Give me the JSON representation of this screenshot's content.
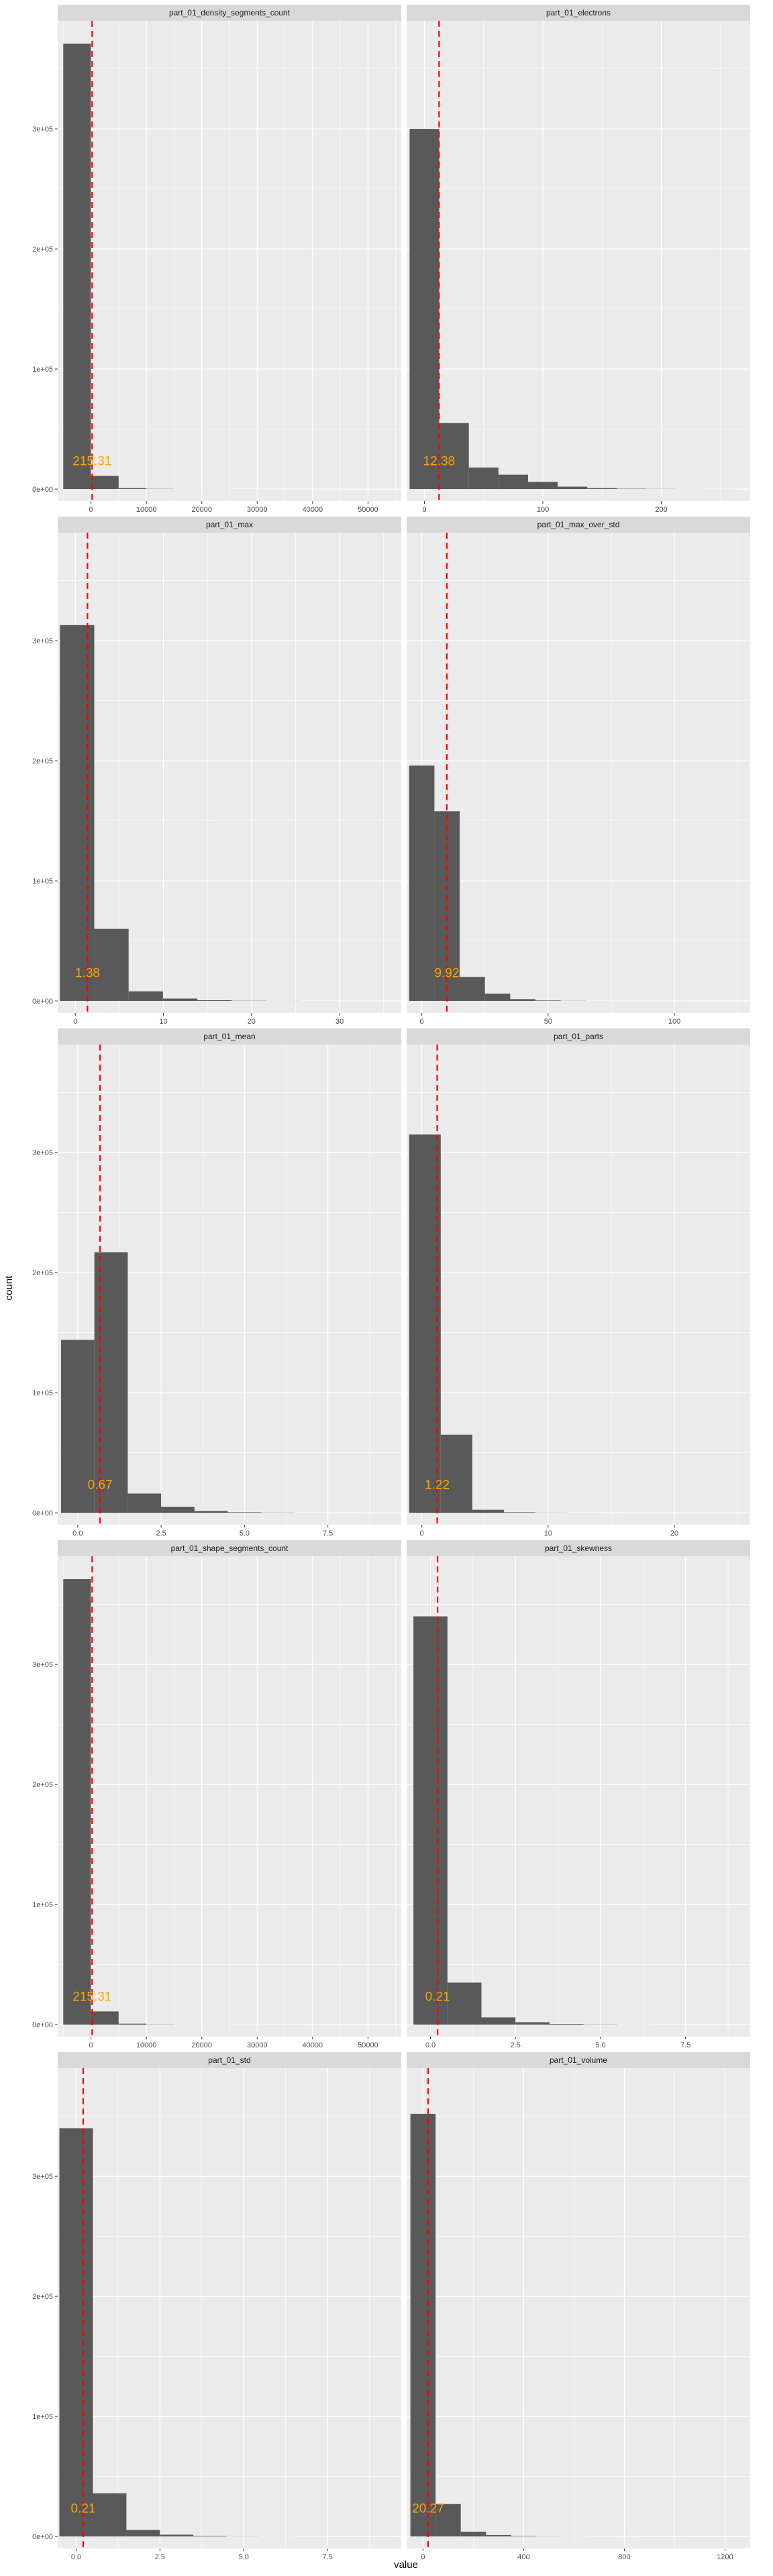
{
  "colors": {
    "panel_bg": "#ebebeb",
    "strip_bg": "#d9d9d9",
    "grid": "#ffffff",
    "bar": "#595959",
    "mean_line": "#ff0000",
    "mean_label": "#ffa500"
  },
  "axes": {
    "xlabel": "value",
    "ylabel": "count",
    "y_ticks": [
      0,
      100000,
      200000,
      300000
    ],
    "y_tick_labels": [
      "0e+00",
      "1e+05",
      "2e+05",
      "3e+05"
    ],
    "ylim": [
      -10000,
      390000
    ],
    "grid": true
  },
  "chart_data": {
    "type": "bar",
    "layout": "facet_wrap 5 rows × 2 columns, free x scales",
    "reference_line": "dashed vertical line at mean, labeled",
    "panels": [
      {
        "title": "part_01_density_segments_count",
        "xlim": [
          -6000,
          56000
        ],
        "x_ticks": [
          0,
          10000,
          20000,
          30000,
          40000,
          50000
        ],
        "x_tick_labels": [
          "0",
          "10000",
          "20000",
          "30000",
          "40000",
          "50000"
        ],
        "bin_edges": [
          -5000,
          0,
          5000,
          10000,
          15000,
          20000,
          25000,
          30000,
          35000,
          40000,
          45000,
          50000,
          55000
        ],
        "counts": [
          371000,
          11000,
          800,
          200,
          100,
          80,
          50,
          30,
          20,
          10,
          5,
          5
        ],
        "mean": 215.31,
        "mean_label": "215.31"
      },
      {
        "title": "part_01_electrons",
        "xlim": [
          -15,
          275
        ],
        "x_ticks": [
          0,
          100,
          200
        ],
        "x_tick_labels": [
          "0",
          "100",
          "200"
        ],
        "bin_edges": [
          -12.5,
          12.5,
          37.5,
          62.5,
          87.5,
          112.5,
          137.5,
          162.5,
          187.5,
          212.5,
          237.5,
          262.5
        ],
        "counts": [
          300000,
          55000,
          18000,
          12000,
          6000,
          2000,
          800,
          300,
          150,
          80,
          40
        ],
        "mean": 12.38,
        "mean_label": "12.38"
      },
      {
        "title": "part_01_max",
        "xlim": [
          -2,
          37
        ],
        "x_ticks": [
          0,
          10,
          20,
          30
        ],
        "x_tick_labels": [
          "0",
          "10",
          "20",
          "30"
        ],
        "bin_edges": [
          -1.75,
          2.15,
          6.05,
          9.95,
          13.85,
          17.75,
          21.65,
          25.55,
          29.45,
          33.35
        ],
        "counts": [
          313000,
          60000,
          8000,
          2000,
          600,
          200,
          100,
          50,
          30
        ],
        "mean": 1.38,
        "mean_label": "1.38"
      },
      {
        "title": "part_01_max_over_std",
        "xlim": [
          -6,
          130
        ],
        "x_ticks": [
          0,
          50,
          100
        ],
        "x_tick_labels": [
          "0",
          "50",
          "100"
        ],
        "bin_edges": [
          -5,
          5,
          15,
          25,
          35,
          45,
          55,
          65,
          75,
          85,
          95,
          105,
          115,
          125
        ],
        "counts": [
          196000,
          158000,
          20000,
          6000,
          1500,
          400,
          150,
          60,
          30,
          15,
          10,
          5,
          3
        ],
        "mean": 9.92,
        "mean_label": "9.92"
      },
      {
        "title": "part_01_mean",
        "xlim": [
          -0.6,
          9.7
        ],
        "x_ticks": [
          0,
          2.5,
          5,
          7.5
        ],
        "x_tick_labels": [
          "0.0",
          "2.5",
          "5.0",
          "7.5"
        ],
        "bin_edges": [
          -0.5,
          0.5,
          1.5,
          2.5,
          3.5,
          4.5,
          5.5,
          6.5,
          7.5,
          8.5,
          9.5
        ],
        "counts": [
          144000,
          217000,
          16000,
          5000,
          1500,
          400,
          150,
          60,
          20,
          10
        ],
        "mean": 0.67,
        "mean_label": "0.67"
      },
      {
        "title": "part_01_parts",
        "xlim": [
          -1.2,
          26
        ],
        "x_ticks": [
          0,
          10,
          20
        ],
        "x_tick_labels": [
          "0",
          "10",
          "20"
        ],
        "bin_edges": [
          -1,
          1.5,
          4,
          6.5,
          9,
          11.5,
          14,
          16.5,
          19,
          21.5,
          24
        ],
        "counts": [
          315000,
          65000,
          2500,
          400,
          120,
          50,
          20,
          10,
          5,
          3
        ],
        "mean": 1.22,
        "mean_label": "1.22"
      },
      {
        "title": "part_01_shape_segments_count",
        "xlim": [
          -6000,
          56000
        ],
        "x_ticks": [
          0,
          10000,
          20000,
          30000,
          40000,
          50000
        ],
        "x_tick_labels": [
          "0",
          "10000",
          "20000",
          "30000",
          "40000",
          "50000"
        ],
        "bin_edges": [
          -5000,
          0,
          5000,
          10000,
          15000,
          20000,
          25000,
          30000,
          35000,
          40000,
          45000,
          50000,
          55000
        ],
        "counts": [
          371000,
          11000,
          800,
          200,
          100,
          80,
          50,
          30,
          20,
          10,
          5,
          5
        ],
        "mean": 215.31,
        "mean_label": "215.31"
      },
      {
        "title": "part_01_skewness",
        "xlim": [
          -0.7,
          9.4
        ],
        "x_ticks": [
          0,
          2.5,
          5,
          7.5
        ],
        "x_tick_labels": [
          "0.0",
          "2.5",
          "5.0",
          "7.5"
        ],
        "bin_edges": [
          -0.5,
          0.5,
          1.5,
          2.5,
          3.5,
          4.5,
          5.5,
          6.5,
          7.5,
          8.5,
          9.5
        ],
        "counts": [
          340000,
          35000,
          6000,
          2000,
          600,
          200,
          80,
          30,
          15,
          8
        ],
        "mean": 0.21,
        "mean_label": "0.21"
      },
      {
        "title": "part_01_std",
        "xlim": [
          -0.55,
          9.7
        ],
        "x_ticks": [
          0,
          2.5,
          5,
          7.5
        ],
        "x_tick_labels": [
          "0.0",
          "2.5",
          "5.0",
          "7.5"
        ],
        "bin_edges": [
          -0.5,
          0.5,
          1.5,
          2.5,
          3.5,
          4.5,
          5.5,
          6.5,
          7.5,
          8.5,
          9.5
        ],
        "counts": [
          340000,
          36000,
          5500,
          1500,
          500,
          150,
          60,
          25,
          10,
          5
        ],
        "mean": 0.21,
        "mean_label": "0.21"
      },
      {
        "title": "part_01_volume",
        "xlim": [
          -65,
          1300
        ],
        "x_ticks": [
          0,
          400,
          800,
          1200
        ],
        "x_tick_labels": [
          "0",
          "400",
          "800",
          "1200"
        ],
        "bin_edges": [
          -50,
          50,
          150,
          250,
          350,
          450,
          550,
          650,
          750,
          850,
          950,
          1050,
          1150,
          1250
        ],
        "counts": [
          352000,
          27000,
          4000,
          1200,
          400,
          150,
          60,
          30,
          15,
          8,
          5,
          3,
          2
        ],
        "mean": 20.27,
        "mean_label": "20.27"
      }
    ]
  }
}
